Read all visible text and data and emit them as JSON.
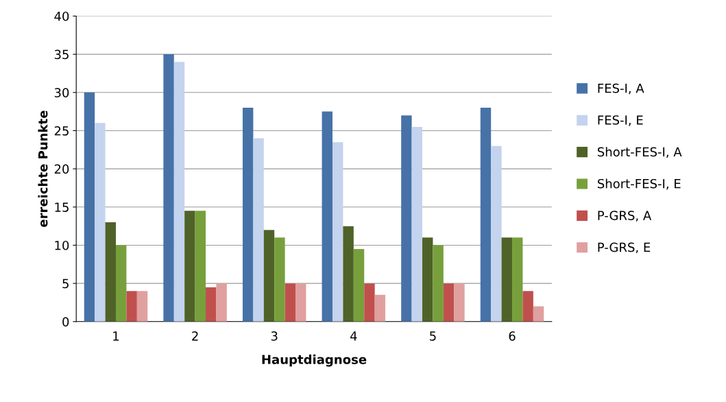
{
  "chart_data": {
    "type": "bar",
    "xlabel": "Hauptdiagnose",
    "ylabel": "erreichte Punkte",
    "categories": [
      "1",
      "2",
      "3",
      "4",
      "5",
      "6"
    ],
    "series": [
      {
        "name": "FES-I, A",
        "color": "#4672a8",
        "values": [
          30,
          35,
          28,
          27.5,
          27,
          28
        ]
      },
      {
        "name": "FES-I, E",
        "color": "#c4d3ee",
        "values": [
          26,
          34,
          24,
          23.5,
          25.5,
          23
        ]
      },
      {
        "name": "Short-FES-I, A",
        "color": "#4f6228",
        "values": [
          13,
          14.5,
          12,
          12.5,
          11,
          11
        ]
      },
      {
        "name": "Short-FES-I, E",
        "color": "#77a03c",
        "values": [
          10,
          14.5,
          11,
          9.5,
          10,
          11
        ]
      },
      {
        "name": "P-GRS, A",
        "color": "#c0504d",
        "values": [
          4,
          4.5,
          5,
          5,
          5,
          4
        ]
      },
      {
        "name": "P-GRS, E",
        "color": "#e0a0a0",
        "values": [
          4,
          5,
          5,
          3.5,
          5,
          2
        ]
      }
    ],
    "ylim": [
      0,
      40
    ],
    "yticks": [
      0,
      5,
      10,
      15,
      20,
      25,
      30,
      35,
      40
    ],
    "grid": "y",
    "legend": "right"
  }
}
